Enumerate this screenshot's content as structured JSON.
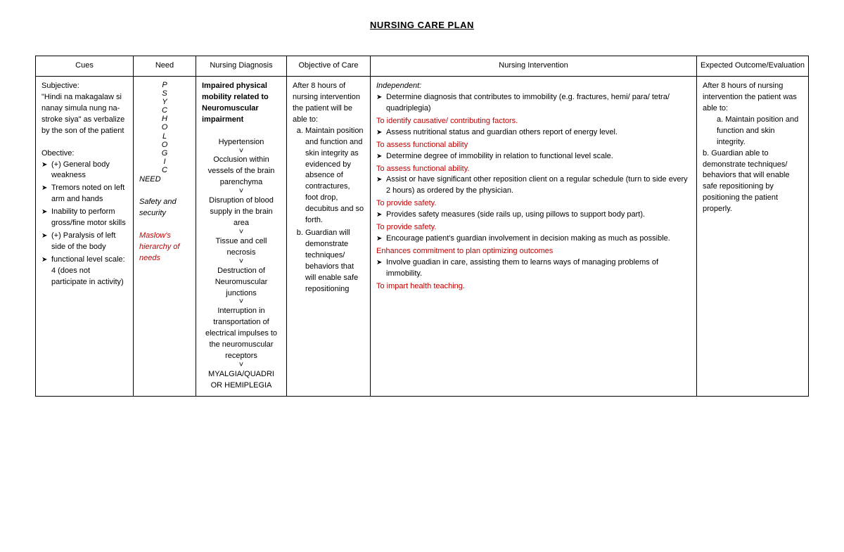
{
  "title": "NURSING CARE PLAN",
  "headers": {
    "cues": "Cues",
    "need": "Need",
    "diagnosis": "Nursing Diagnosis",
    "objective": "Objective of Care",
    "intervention": "Nursing Intervention",
    "outcome": "Expected Outcome/Evaluation"
  },
  "cues": {
    "subj_label": "Subjective:",
    "subj_text": "\"Hindi na makagalaw si nanay simula nung na-stroke siya\" as verbalize by the son of the patient",
    "obj_label": "Obective:",
    "obj_items": [
      "(+) General body weakness",
      "Tremors noted on left arm and hands",
      "Inability to perform gross/fine motor skills",
      "(+) Paralysis of left side of the body",
      "functional level scale: 4 (does not participate in activity)"
    ]
  },
  "need": {
    "vertical": [
      "P",
      "S",
      "Y",
      "C",
      "H",
      "O",
      "L",
      "O",
      "G",
      "I",
      "C"
    ],
    "need_word": "NEED",
    "safety": "Safety and security",
    "maslow": "Maslow's hierarchy of needs"
  },
  "diagnosis": {
    "main": "Impaired physical mobility related to Neuromuscular impairment",
    "chain": [
      "Hypertension",
      "Occlusion within vessels of the brain parenchyma",
      "Disruption of blood supply in the brain area",
      "Tissue and cell necrosis",
      "Destruction of Neuromuscular junctions",
      "Interruption in transportation of electrical impulses to the neuromuscular receptors",
      "MYALGIA/QUADRI OR HEMIPLEGIA"
    ]
  },
  "objective": {
    "intro": "After 8 hours of nursing intervention the patient will be able to:",
    "items": [
      "Maintain position and function and skin integrity as evidenced by absence of contractures, foot drop, decubitus and so forth.",
      "Guardian will demonstrate techniques/ behaviors that will enable safe repositioning"
    ]
  },
  "intervention": {
    "independent_label": "Independent:",
    "items": [
      {
        "text": "Determine diagnosis that contributes to immobility  (e.g. fractures, hemi/ para/ tetra/ quadriplegia)",
        "rationale": "To identify causative/ contributing factors."
      },
      {
        "text": "Assess nutritional status and guardian others report of energy level.",
        "rationale": "To assess functional ability"
      },
      {
        "text": "Determine degree of immobility in relation to functional level scale.",
        "rationale": "To assess functional ability."
      },
      {
        "text": "Assist or have significant other reposition client on a regular schedule (turn to side every 2 hours) as ordered by the physician.",
        "rationale": "To provide safety."
      },
      {
        "text": "Provides safety measures (side rails up, using pillows to support body part).",
        "rationale": "To provide safety."
      },
      {
        "text": "Encourage patient's guardian involvement in decision making as much as possible.",
        "rationale": "Enhances commitment to plan optimizing outcomes"
      },
      {
        "text": "Involve guadian in care, assisting them to learns ways of managing problems of immobility.",
        "rationale": "To impart health teaching."
      }
    ]
  },
  "outcome": {
    "intro": "After 8 hours of nursing intervention the patient was able to:",
    "a": "a. Maintain position and function and skin integrity.",
    "b": "b. Guardian able to demonstrate techniques/ behaviors that will enable safe repositioning by positioning the patient properly."
  },
  "colors": {
    "red": "#c00000"
  }
}
